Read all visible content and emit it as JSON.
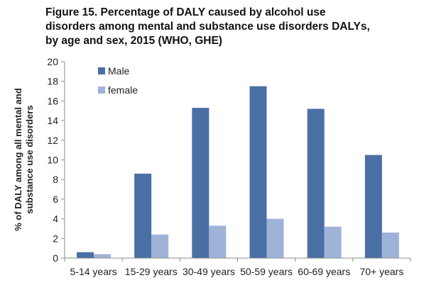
{
  "chart_data": {
    "type": "bar",
    "title_lines": [
      "Figure 15. Percentage of DALY caused by alcohol use",
      "disorders among mental and substance use disorders DALYs,",
      "by age and sex, 2015 (WHO, GHE)"
    ],
    "xlabel": "",
    "ylabel_lines": [
      "% of DALY among all mental and",
      "substance use disorders"
    ],
    "categories": [
      "5-14 years",
      "15-29 years",
      "30-49 years",
      "50-59 years",
      "60-69 years",
      "70+ years"
    ],
    "series": [
      {
        "name": "Male",
        "color": "#4a6fa5",
        "values": [
          0.6,
          8.6,
          15.3,
          17.5,
          15.2,
          10.5
        ]
      },
      {
        "name": "female",
        "color": "#9fb3d9",
        "values": [
          0.4,
          2.4,
          3.3,
          4.0,
          3.2,
          2.6
        ]
      }
    ],
    "ylim": [
      0,
      20
    ],
    "yticks": [
      0,
      2,
      4,
      6,
      8,
      10,
      12,
      14,
      16,
      18,
      20
    ],
    "grid": false,
    "legend_position": "top-left"
  }
}
